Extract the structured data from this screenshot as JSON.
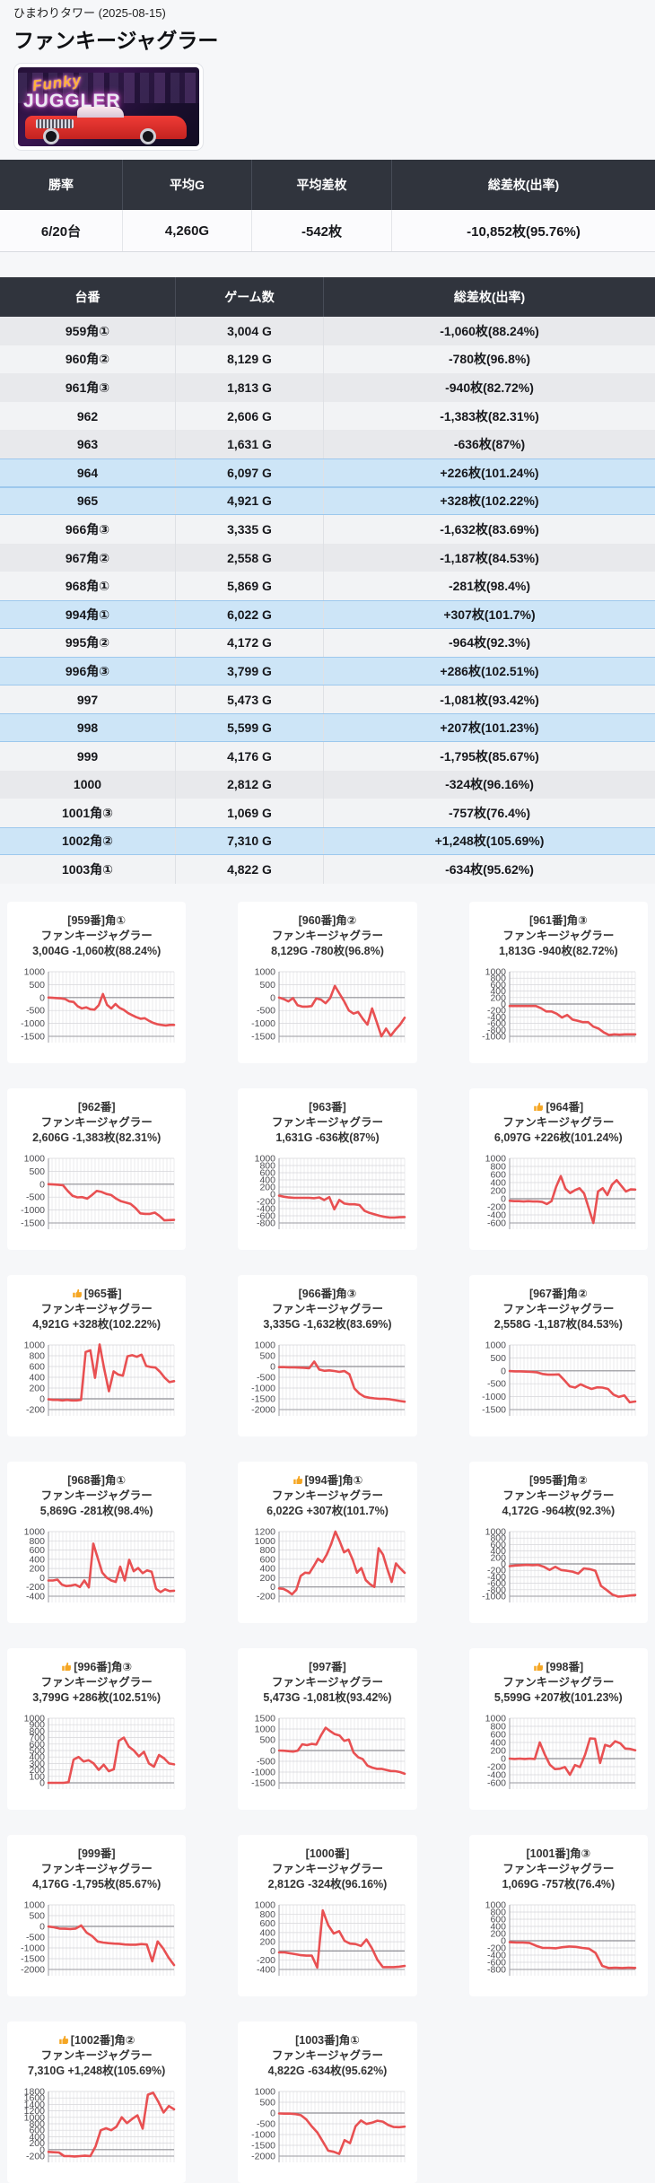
{
  "page": {
    "hall_line": "ひまわりタワー (2025-08-15)",
    "title": "ファンキージャグラー"
  },
  "banner": {
    "line1": "Funky",
    "line2": "JUGGLER"
  },
  "summary_table": {
    "headers": [
      "勝率",
      "平均G",
      "平均差枚",
      "総差枚(出率)"
    ],
    "values": [
      "6/20台",
      "4,260G",
      "-542枚",
      "-10,852枚(95.76%)"
    ]
  },
  "machine_table": {
    "headers": [
      "台番",
      "ゲーム数",
      "総差枚(出率)"
    ],
    "rows": [
      {
        "dai": "959角①",
        "games": "3,004 G",
        "result": "-1,060枚(88.24%)",
        "positive": false
      },
      {
        "dai": "960角②",
        "games": "8,129 G",
        "result": "-780枚(96.8%)",
        "positive": false
      },
      {
        "dai": "961角③",
        "games": "1,813 G",
        "result": "-940枚(82.72%)",
        "positive": false
      },
      {
        "dai": "962",
        "games": "2,606 G",
        "result": "-1,383枚(82.31%)",
        "positive": false
      },
      {
        "dai": "963",
        "games": "1,631 G",
        "result": "-636枚(87%)",
        "positive": false
      },
      {
        "dai": "964",
        "games": "6,097 G",
        "result": "+226枚(101.24%)",
        "positive": true
      },
      {
        "dai": "965",
        "games": "4,921 G",
        "result": "+328枚(102.22%)",
        "positive": true
      },
      {
        "dai": "966角③",
        "games": "3,335 G",
        "result": "-1,632枚(83.69%)",
        "positive": false
      },
      {
        "dai": "967角②",
        "games": "2,558 G",
        "result": "-1,187枚(84.53%)",
        "positive": false
      },
      {
        "dai": "968角①",
        "games": "5,869 G",
        "result": "-281枚(98.4%)",
        "positive": false
      },
      {
        "dai": "994角①",
        "games": "6,022 G",
        "result": "+307枚(101.7%)",
        "positive": true
      },
      {
        "dai": "995角②",
        "games": "4,172 G",
        "result": "-964枚(92.3%)",
        "positive": false
      },
      {
        "dai": "996角③",
        "games": "3,799 G",
        "result": "+286枚(102.51%)",
        "positive": true
      },
      {
        "dai": "997",
        "games": "5,473 G",
        "result": "-1,081枚(93.42%)",
        "positive": false
      },
      {
        "dai": "998",
        "games": "5,599 G",
        "result": "+207枚(101.23%)",
        "positive": true
      },
      {
        "dai": "999",
        "games": "4,176 G",
        "result": "-1,795枚(85.67%)",
        "positive": false
      },
      {
        "dai": "1000",
        "games": "2,812 G",
        "result": "-324枚(96.16%)",
        "positive": false
      },
      {
        "dai": "1001角③",
        "games": "1,069 G",
        "result": "-757枚(76.4%)",
        "positive": false
      },
      {
        "dai": "1002角②",
        "games": "7,310 G",
        "result": "+1,248枚(105.69%)",
        "positive": true
      },
      {
        "dai": "1003角①",
        "games": "4,822 G",
        "result": "-634枚(95.62%)",
        "positive": false
      }
    ]
  },
  "chart_data": [
    {
      "type": "line",
      "machine": "[959番]角①",
      "model": "ファンキージャグラー",
      "stats": "3,004G -1,060枚(88.24%)",
      "thumb": false,
      "yticks": [
        1000,
        500,
        0,
        -500,
        -1000,
        -1500
      ],
      "values": [
        0,
        -10,
        -20,
        -30,
        -60,
        -150,
        -170,
        -340,
        -420,
        -380,
        -450,
        -470,
        -300,
        140,
        -280,
        -420,
        -250,
        -400,
        -480,
        -600,
        -680,
        -760,
        -820,
        -800,
        -900,
        -980,
        -1030,
        -1060,
        -1080,
        -1060,
        -1060
      ]
    },
    {
      "type": "line",
      "machine": "[960番]角②",
      "model": "ファンキージャグラー",
      "stats": "8,129G -780枚(96.8%)",
      "thumb": false,
      "yticks": [
        1000,
        500,
        0,
        -500,
        -1000,
        -1500
      ],
      "values": [
        0,
        -60,
        -150,
        -20,
        -300,
        -350,
        -350,
        -330,
        -30,
        -80,
        -220,
        -20,
        450,
        150,
        -150,
        -500,
        -620,
        -560,
        -820,
        -1050,
        -420,
        -950,
        -1500,
        -1200,
        -1480,
        -1250,
        -1050,
        -780
      ]
    },
    {
      "type": "line",
      "machine": "[961番]角③",
      "model": "ファンキージャグラー",
      "stats": "1,813G -940枚(82.72%)",
      "thumb": false,
      "yticks": [
        1000,
        800,
        600,
        400,
        200,
        0,
        -200,
        -400,
        -600,
        -800,
        -1000
      ],
      "values": [
        -60,
        -60,
        -60,
        -60,
        -60,
        -60,
        -130,
        -230,
        -230,
        -300,
        -420,
        -340,
        -480,
        -520,
        -560,
        -560,
        -700,
        -760,
        -880,
        -960,
        -940,
        -950,
        -940,
        -940,
        -940
      ]
    },
    {
      "type": "line",
      "machine": "[962番]",
      "model": "ファンキージャグラー",
      "stats": "2,606G -1,383枚(82.31%)",
      "thumb": false,
      "yticks": [
        1000,
        500,
        0,
        -500,
        -1000,
        -1500
      ],
      "values": [
        0,
        -10,
        -20,
        -40,
        -260,
        -450,
        -510,
        -500,
        -560,
        -420,
        -260,
        -300,
        -380,
        -420,
        -560,
        -660,
        -710,
        -760,
        -920,
        -1130,
        -1150,
        -1150,
        -1100,
        -1230,
        -1400,
        -1390,
        -1383
      ]
    },
    {
      "type": "line",
      "machine": "[963番]",
      "model": "ファンキージャグラー",
      "stats": "1,631G -636枚(87%)",
      "thumb": false,
      "yticks": [
        1000,
        800,
        600,
        400,
        200,
        0,
        -200,
        -400,
        -600,
        -800
      ],
      "values": [
        -40,
        -70,
        -90,
        -100,
        -100,
        -100,
        -100,
        -110,
        -90,
        -160,
        -80,
        -420,
        -160,
        -260,
        -280,
        -280,
        -300,
        -460,
        -520,
        -560,
        -600,
        -630,
        -650,
        -650,
        -640,
        -636
      ]
    },
    {
      "type": "line",
      "machine": "[964番]",
      "model": "ファンキージャグラー",
      "stats": "6,097G +226枚(101.24%)",
      "thumb": true,
      "yticks": [
        1000,
        800,
        600,
        400,
        200,
        0,
        -200,
        -400,
        -600
      ],
      "values": [
        -50,
        -60,
        -60,
        -70,
        -60,
        -70,
        -70,
        -80,
        -130,
        -60,
        300,
        560,
        250,
        140,
        210,
        260,
        130,
        -230,
        -600,
        180,
        260,
        90,
        350,
        460,
        320,
        180,
        230,
        226
      ]
    },
    {
      "type": "line",
      "machine": "[965番]",
      "model": "ファンキージャグラー",
      "stats": "4,921G +328枚(102.22%)",
      "thumb": true,
      "yticks": [
        1000,
        800,
        600,
        400,
        200,
        0,
        -200
      ],
      "values": [
        -10,
        -20,
        -20,
        -30,
        -20,
        -30,
        -30,
        -20,
        870,
        900,
        390,
        1010,
        550,
        140,
        510,
        450,
        430,
        790,
        810,
        780,
        820,
        610,
        590,
        580,
        500,
        390,
        310,
        328
      ]
    },
    {
      "type": "line",
      "machine": "[966番]角③",
      "model": "ファンキージャグラー",
      "stats": "3,335G -1,632枚(83.69%)",
      "thumb": false,
      "yticks": [
        1000,
        500,
        0,
        -500,
        -1000,
        -1500,
        -2000
      ],
      "values": [
        -30,
        -30,
        -40,
        -40,
        -50,
        -60,
        -80,
        230,
        -140,
        -200,
        -180,
        -210,
        -250,
        -210,
        -360,
        -1020,
        -1260,
        -1400,
        -1450,
        -1480,
        -1500,
        -1500,
        -1520,
        -1560,
        -1600,
        -1632
      ]
    },
    {
      "type": "line",
      "machine": "[967番]角②",
      "model": "ファンキージャグラー",
      "stats": "2,558G -1,187枚(84.53%)",
      "thumb": false,
      "yticks": [
        1000,
        500,
        0,
        -500,
        -1000,
        -1500
      ],
      "values": [
        -10,
        -20,
        -20,
        -30,
        -40,
        -60,
        -120,
        -150,
        -150,
        -140,
        -360,
        -600,
        -650,
        -520,
        -620,
        -700,
        -640,
        -650,
        -700,
        -920,
        -1010,
        -950,
        -1220,
        -1187
      ]
    },
    {
      "type": "line",
      "machine": "[968番]角①",
      "model": "ファンキージャグラー",
      "stats": "5,869G -281枚(98.4%)",
      "thumb": false,
      "yticks": [
        1000,
        800,
        600,
        400,
        200,
        0,
        -200,
        -400
      ],
      "values": [
        -60,
        -60,
        -40,
        -150,
        -180,
        -170,
        -150,
        -200,
        -60,
        -210,
        740,
        420,
        110,
        0,
        -60,
        -90,
        240,
        -60,
        390,
        140,
        210,
        100,
        160,
        130,
        -240,
        -310,
        -250,
        -290,
        -281
      ]
    },
    {
      "type": "line",
      "machine": "[994番]角①",
      "model": "ファンキージャグラー",
      "stats": "6,022G +307枚(101.7%)",
      "thumb": true,
      "yticks": [
        1200,
        1000,
        800,
        600,
        400,
        200,
        0,
        -200
      ],
      "values": [
        -30,
        -40,
        -90,
        -160,
        -60,
        240,
        310,
        300,
        450,
        610,
        540,
        700,
        920,
        1200,
        990,
        750,
        810,
        590,
        310,
        410,
        150,
        60,
        0,
        840,
        700,
        390,
        110,
        510,
        400,
        307
      ]
    },
    {
      "type": "line",
      "machine": "[995番]角②",
      "model": "ファンキージャグラー",
      "stats": "4,172G -964枚(92.3%)",
      "thumb": false,
      "yticks": [
        1000,
        800,
        600,
        400,
        200,
        0,
        -200,
        -400,
        -600,
        -800,
        -1000
      ],
      "values": [
        -70,
        -50,
        -40,
        -30,
        -40,
        -30,
        -90,
        -190,
        -90,
        -190,
        -210,
        -240,
        -300,
        -140,
        -160,
        -210,
        -680,
        -810,
        -950,
        -1010,
        -1000,
        -980,
        -964
      ]
    },
    {
      "type": "line",
      "machine": "[996番]角③",
      "model": "ファンキージャグラー",
      "stats": "3,799G +286枚(102.51%)",
      "thumb": true,
      "yticks": [
        1000,
        900,
        800,
        700,
        600,
        500,
        400,
        300,
        200,
        100,
        0
      ],
      "values": [
        0,
        0,
        0,
        0,
        10,
        360,
        400,
        330,
        350,
        300,
        200,
        280,
        180,
        210,
        650,
        700,
        560,
        500,
        410,
        480,
        300,
        250,
        430,
        380,
        300,
        286
      ]
    },
    {
      "type": "line",
      "machine": "[997番]",
      "model": "ファンキージャグラー",
      "stats": "5,473G -1,081枚(93.42%)",
      "thumb": false,
      "yticks": [
        1500,
        1000,
        500,
        0,
        -500,
        -1000,
        -1500
      ],
      "values": [
        0,
        -10,
        -30,
        -50,
        -10,
        290,
        250,
        310,
        280,
        700,
        1060,
        900,
        760,
        700,
        450,
        510,
        -90,
        -310,
        -400,
        -700,
        -790,
        -850,
        -850,
        -900,
        -950,
        -960,
        -1000,
        -1081
      ]
    },
    {
      "type": "line",
      "machine": "[998番]",
      "model": "ファンキージャグラー",
      "stats": "5,599G +207枚(101.23%)",
      "thumb": true,
      "yticks": [
        1000,
        800,
        600,
        400,
        200,
        0,
        -200,
        -400,
        -600
      ],
      "values": [
        0,
        -10,
        0,
        -10,
        0,
        -10,
        400,
        100,
        -150,
        -260,
        -250,
        -210,
        -400,
        -160,
        -210,
        90,
        500,
        490,
        -110,
        340,
        300,
        430,
        380,
        250,
        240,
        207
      ]
    },
    {
      "type": "line",
      "machine": "[999番]",
      "model": "ファンキージャグラー",
      "stats": "4,176G -1,795枚(85.67%)",
      "thumb": false,
      "yticks": [
        1000,
        500,
        0,
        -500,
        -1000,
        -1500,
        -2000
      ],
      "values": [
        -10,
        -40,
        -100,
        -110,
        -120,
        -100,
        40,
        -290,
        -450,
        -700,
        -750,
        -780,
        -800,
        -810,
        -840,
        -850,
        -850,
        -820,
        -840,
        -1620,
        -700,
        -1020,
        -1450,
        -1795
      ]
    },
    {
      "type": "line",
      "machine": "[1000番]",
      "model": "ファンキージャグラー",
      "stats": "2,812G -324枚(96.16%)",
      "thumb": false,
      "yticks": [
        1000,
        800,
        600,
        400,
        200,
        0,
        -200,
        -400
      ],
      "values": [
        -30,
        -30,
        -50,
        -70,
        -90,
        -100,
        -100,
        -360,
        880,
        560,
        380,
        430,
        220,
        160,
        150,
        110,
        250,
        60,
        -190,
        -350,
        -350,
        -350,
        -340,
        -324
      ]
    },
    {
      "type": "line",
      "machine": "[1001番]角③",
      "model": "ファンキージャグラー",
      "stats": "1,069G -757枚(76.4%)",
      "thumb": false,
      "yticks": [
        1000,
        800,
        600,
        400,
        200,
        0,
        -200,
        -400,
        -600,
        -800
      ],
      "values": [
        -40,
        -50,
        -50,
        -60,
        -140,
        -200,
        -200,
        -210,
        -180,
        -160,
        -170,
        -200,
        -220,
        -340,
        -700,
        -760,
        -750,
        -760,
        -750,
        -757
      ]
    },
    {
      "type": "line",
      "machine": "[1002番]角②",
      "model": "ファンキージャグラー",
      "stats": "7,310G +1,248枚(105.69%)",
      "thumb": true,
      "yticks": [
        1800,
        1600,
        1400,
        1200,
        1000,
        800,
        600,
        400,
        200,
        0,
        -200
      ],
      "values": [
        -70,
        -80,
        -90,
        -200,
        -200,
        -210,
        -200,
        -190,
        -200,
        100,
        600,
        660,
        600,
        710,
        1000,
        820,
        950,
        1060,
        650,
        1700,
        1760,
        1480,
        1150,
        1350,
        1248
      ]
    },
    {
      "type": "line",
      "machine": "[1003番]角①",
      "model": "ファンキージャグラー",
      "stats": "4,822G -634枚(95.62%)",
      "thumb": false,
      "yticks": [
        1000,
        500,
        0,
        -500,
        -1000,
        -1500,
        -2000
      ],
      "values": [
        -20,
        -30,
        -30,
        -50,
        -100,
        -300,
        -620,
        -900,
        -1320,
        -1750,
        -1800,
        -1900,
        -1260,
        -1400,
        -620,
        -350,
        -510,
        -450,
        -360,
        -400,
        -560,
        -650,
        -660,
        -634
      ]
    }
  ],
  "colors": {
    "line_red": "#e85052",
    "table_header_bg": "#30343d",
    "highlight_row_bg": "#cde5f7",
    "highlight_row_border": "#9dc8ed"
  }
}
